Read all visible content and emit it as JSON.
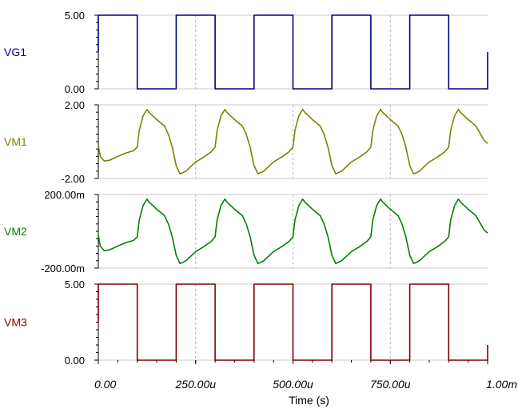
{
  "chart_data": {
    "type": "line",
    "xlabel": "Time (s)",
    "x_ticks": [
      "0.00",
      "250.00u",
      "500.00u",
      "750.00u",
      "1.00m"
    ],
    "xlim": [
      0,
      0.001
    ],
    "grid": true,
    "panels": [
      {
        "name": "VG1",
        "color": "#000080",
        "ylim": [
          0,
          5
        ],
        "y_ticks": [
          "5.00",
          "0.00"
        ],
        "points": [
          [
            0,
            2.5
          ],
          [
            0,
            5
          ],
          [
            0.0001,
            5
          ],
          [
            0.0001,
            0
          ],
          [
            0.0002,
            0
          ],
          [
            0.0002,
            5
          ],
          [
            0.0003,
            5
          ],
          [
            0.0003,
            0
          ],
          [
            0.0004,
            0
          ],
          [
            0.0004,
            5
          ],
          [
            0.0005,
            5
          ],
          [
            0.0005,
            0
          ],
          [
            0.0006,
            0
          ],
          [
            0.0006,
            5
          ],
          [
            0.0007,
            5
          ],
          [
            0.0007,
            0
          ],
          [
            0.0008,
            0
          ],
          [
            0.0008,
            5
          ],
          [
            0.0009,
            5
          ],
          [
            0.0009,
            0
          ],
          [
            0.001,
            0
          ],
          [
            0.001,
            2.5
          ]
        ]
      },
      {
        "name": "VM1",
        "color": "#808000",
        "ylim": [
          -2,
          2
        ],
        "y_ticks": [
          "2.00",
          "-2.00"
        ],
        "points": [
          [
            0,
            -0.2
          ],
          [
            5e-06,
            -0.8
          ],
          [
            1.5e-05,
            -1.05
          ],
          [
            3e-05,
            -1.0
          ],
          [
            5e-05,
            -0.8
          ],
          [
            7e-05,
            -0.62
          ],
          [
            9e-05,
            -0.5
          ],
          [
            0.0001,
            -0.3
          ],
          [
            0.000105,
            0.6
          ],
          [
            0.000115,
            1.4
          ],
          [
            0.000125,
            1.75
          ],
          [
            0.00013,
            1.6
          ],
          [
            0.00015,
            1.2
          ],
          [
            0.00017,
            0.85
          ],
          [
            0.00018,
            0.4
          ],
          [
            0.00019,
            -0.3
          ],
          [
            0.0002,
            -1.3
          ],
          [
            0.00021,
            -1.75
          ],
          [
            0.000225,
            -1.6
          ],
          [
            0.00025,
            -1.1
          ],
          [
            0.00027,
            -0.85
          ],
          [
            0.00029,
            -0.55
          ],
          [
            0.0003,
            -0.3
          ],
          [
            0.000305,
            0.6
          ],
          [
            0.000315,
            1.4
          ],
          [
            0.000325,
            1.75
          ],
          [
            0.00033,
            1.6
          ],
          [
            0.00035,
            1.2
          ],
          [
            0.00037,
            0.85
          ],
          [
            0.00038,
            0.4
          ],
          [
            0.00039,
            -0.3
          ],
          [
            0.0004,
            -1.3
          ],
          [
            0.00041,
            -1.75
          ],
          [
            0.000425,
            -1.6
          ],
          [
            0.00045,
            -1.1
          ],
          [
            0.00047,
            -0.85
          ],
          [
            0.00049,
            -0.55
          ],
          [
            0.0005,
            -0.3
          ],
          [
            0.000505,
            0.6
          ],
          [
            0.000515,
            1.4
          ],
          [
            0.000525,
            1.75
          ],
          [
            0.00053,
            1.6
          ],
          [
            0.00055,
            1.2
          ],
          [
            0.00057,
            0.85
          ],
          [
            0.00058,
            0.4
          ],
          [
            0.00059,
            -0.3
          ],
          [
            0.0006,
            -1.3
          ],
          [
            0.00061,
            -1.75
          ],
          [
            0.000625,
            -1.6
          ],
          [
            0.00065,
            -1.1
          ],
          [
            0.00067,
            -0.85
          ],
          [
            0.00069,
            -0.55
          ],
          [
            0.0007,
            -0.3
          ],
          [
            0.000705,
            0.6
          ],
          [
            0.000715,
            1.4
          ],
          [
            0.000725,
            1.75
          ],
          [
            0.00073,
            1.6
          ],
          [
            0.00075,
            1.2
          ],
          [
            0.00077,
            0.85
          ],
          [
            0.00078,
            0.4
          ],
          [
            0.00079,
            -0.3
          ],
          [
            0.0008,
            -1.3
          ],
          [
            0.00081,
            -1.75
          ],
          [
            0.000825,
            -1.6
          ],
          [
            0.00085,
            -1.1
          ],
          [
            0.00087,
            -0.85
          ],
          [
            0.00089,
            -0.55
          ],
          [
            0.0009,
            -0.3
          ],
          [
            0.000905,
            0.6
          ],
          [
            0.000915,
            1.4
          ],
          [
            0.000925,
            1.75
          ],
          [
            0.00093,
            1.6
          ],
          [
            0.00095,
            1.2
          ],
          [
            0.00097,
            0.85
          ],
          [
            0.00099,
            0.1
          ],
          [
            0.001,
            -0.1
          ]
        ]
      },
      {
        "name": "VM2",
        "color": "#008000",
        "ylim": [
          -0.2,
          0.2
        ],
        "y_ticks": [
          "200.00m",
          "-200.00m"
        ],
        "points": [
          [
            0,
            -0.02
          ],
          [
            5e-06,
            -0.08
          ],
          [
            1.5e-05,
            -0.105
          ],
          [
            3e-05,
            -0.1
          ],
          [
            5e-05,
            -0.08
          ],
          [
            7e-05,
            -0.062
          ],
          [
            9e-05,
            -0.05
          ],
          [
            0.0001,
            -0.03
          ],
          [
            0.000105,
            0.06
          ],
          [
            0.000115,
            0.14
          ],
          [
            0.000125,
            0.175
          ],
          [
            0.00013,
            0.16
          ],
          [
            0.00015,
            0.12
          ],
          [
            0.00017,
            0.085
          ],
          [
            0.00018,
            0.04
          ],
          [
            0.00019,
            -0.03
          ],
          [
            0.0002,
            -0.13
          ],
          [
            0.00021,
            -0.175
          ],
          [
            0.000225,
            -0.16
          ],
          [
            0.00025,
            -0.11
          ],
          [
            0.00027,
            -0.085
          ],
          [
            0.00029,
            -0.055
          ],
          [
            0.0003,
            -0.03
          ],
          [
            0.000305,
            0.06
          ],
          [
            0.000315,
            0.14
          ],
          [
            0.000325,
            0.175
          ],
          [
            0.00033,
            0.16
          ],
          [
            0.00035,
            0.12
          ],
          [
            0.00037,
            0.085
          ],
          [
            0.00038,
            0.04
          ],
          [
            0.00039,
            -0.03
          ],
          [
            0.0004,
            -0.13
          ],
          [
            0.00041,
            -0.175
          ],
          [
            0.000425,
            -0.16
          ],
          [
            0.00045,
            -0.11
          ],
          [
            0.00047,
            -0.085
          ],
          [
            0.00049,
            -0.055
          ],
          [
            0.0005,
            -0.03
          ],
          [
            0.000505,
            0.06
          ],
          [
            0.000515,
            0.14
          ],
          [
            0.000525,
            0.175
          ],
          [
            0.00053,
            0.16
          ],
          [
            0.00055,
            0.12
          ],
          [
            0.00057,
            0.085
          ],
          [
            0.00058,
            0.04
          ],
          [
            0.00059,
            -0.03
          ],
          [
            0.0006,
            -0.13
          ],
          [
            0.00061,
            -0.175
          ],
          [
            0.000625,
            -0.16
          ],
          [
            0.00065,
            -0.11
          ],
          [
            0.00067,
            -0.085
          ],
          [
            0.00069,
            -0.055
          ],
          [
            0.0007,
            -0.03
          ],
          [
            0.000705,
            0.06
          ],
          [
            0.000715,
            0.14
          ],
          [
            0.000725,
            0.175
          ],
          [
            0.00073,
            0.16
          ],
          [
            0.00075,
            0.12
          ],
          [
            0.00077,
            0.085
          ],
          [
            0.00078,
            0.04
          ],
          [
            0.00079,
            -0.03
          ],
          [
            0.0008,
            -0.13
          ],
          [
            0.00081,
            -0.175
          ],
          [
            0.000825,
            -0.16
          ],
          [
            0.00085,
            -0.11
          ],
          [
            0.00087,
            -0.085
          ],
          [
            0.00089,
            -0.055
          ],
          [
            0.0009,
            -0.03
          ],
          [
            0.000905,
            0.06
          ],
          [
            0.000915,
            0.14
          ],
          [
            0.000925,
            0.175
          ],
          [
            0.00093,
            0.16
          ],
          [
            0.00095,
            0.12
          ],
          [
            0.00097,
            0.085
          ],
          [
            0.00099,
            0.01
          ],
          [
            0.001,
            -0.01
          ]
        ]
      },
      {
        "name": "VM3",
        "color": "#800000",
        "ylim": [
          0,
          5
        ],
        "y_ticks": [
          "5.00",
          "0.00"
        ],
        "points": [
          [
            0,
            2.5
          ],
          [
            0,
            5
          ],
          [
            0.0001,
            5
          ],
          [
            0.0001,
            0
          ],
          [
            0.0002,
            0
          ],
          [
            0.0002,
            5
          ],
          [
            0.0003,
            5
          ],
          [
            0.0003,
            0
          ],
          [
            0.0004,
            0
          ],
          [
            0.0004,
            5
          ],
          [
            0.0005,
            5
          ],
          [
            0.0005,
            0
          ],
          [
            0.0006,
            0
          ],
          [
            0.0006,
            5
          ],
          [
            0.0007,
            5
          ],
          [
            0.0007,
            0
          ],
          [
            0.0008,
            0
          ],
          [
            0.0008,
            5
          ],
          [
            0.0009,
            5
          ],
          [
            0.0009,
            0
          ],
          [
            0.001,
            0
          ],
          [
            0.001,
            1
          ]
        ]
      }
    ]
  }
}
